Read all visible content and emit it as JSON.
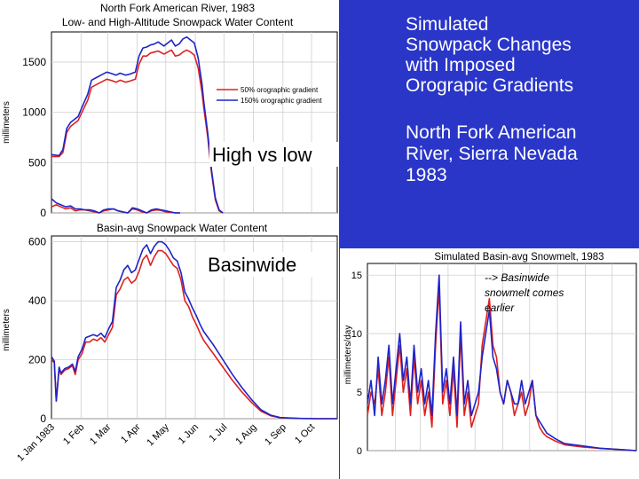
{
  "slide": {
    "title": "Simulated\nSnowpack Changes\nwith Imposed\nOrograpic Gradients",
    "subtitle": "North Fork American\nRiver, Sierra Nevada\n1983",
    "label_high_low": "High vs low",
    "label_basinwide": "Basinwide",
    "annotation": "--> Basinwide\nsnowmelt comes\nearlier",
    "colors": {
      "background": "#2a36c8",
      "red": "#e02020",
      "blue": "#1e24c8"
    }
  },
  "chart_data": [
    {
      "type": "line",
      "title": "North Fork American River, 1983",
      "subtitle": "Low- and High-Altitude Snowpack Water Content",
      "ylabel": "millimeters",
      "yticks": [
        0,
        500,
        1000,
        1500
      ],
      "ylim": [
        0,
        1800
      ],
      "xlim": [
        0,
        300
      ],
      "legend": [
        "50% orographic gradient",
        "150% orographic gradient"
      ],
      "series": [
        {
          "name": "50% orographic gradient (high altitude)",
          "color": "red",
          "x": [
            0,
            8,
            12,
            16,
            20,
            28,
            32,
            38,
            42,
            48,
            52,
            58,
            62,
            68,
            72,
            78,
            82,
            88,
            92,
            96,
            100,
            104,
            108,
            112,
            118,
            122,
            126,
            130,
            134,
            138,
            142,
            146,
            150,
            154,
            158,
            160,
            164,
            168,
            172,
            176,
            180
          ],
          "y": [
            560,
            560,
            600,
            800,
            860,
            920,
            1000,
            1120,
            1250,
            1280,
            1300,
            1330,
            1320,
            1300,
            1320,
            1300,
            1310,
            1330,
            1480,
            1560,
            1560,
            1590,
            1600,
            1610,
            1580,
            1600,
            1620,
            1560,
            1570,
            1600,
            1620,
            1600,
            1570,
            1440,
            1200,
            1040,
            760,
            400,
            130,
            20,
            0
          ]
        },
        {
          "name": "150% orographic gradient (high altitude)",
          "color": "blue",
          "x": [
            0,
            8,
            12,
            16,
            20,
            28,
            32,
            38,
            42,
            48,
            52,
            58,
            62,
            68,
            72,
            78,
            82,
            88,
            92,
            96,
            100,
            104,
            108,
            112,
            118,
            122,
            126,
            130,
            134,
            138,
            142,
            146,
            150,
            154,
            158,
            160,
            164,
            168,
            172,
            176,
            180
          ],
          "y": [
            580,
            570,
            630,
            840,
            900,
            960,
            1050,
            1180,
            1320,
            1350,
            1370,
            1400,
            1390,
            1370,
            1390,
            1370,
            1380,
            1400,
            1560,
            1640,
            1650,
            1670,
            1680,
            1700,
            1660,
            1690,
            1720,
            1660,
            1680,
            1730,
            1750,
            1720,
            1690,
            1540,
            1280,
            1100,
            800,
            430,
            150,
            30,
            0
          ]
        },
        {
          "name": "50% orographic gradient (low altitude)",
          "color": "red",
          "x": [
            0,
            5,
            10,
            15,
            20,
            25,
            30,
            35,
            40,
            45,
            50,
            55,
            60,
            65,
            70,
            75,
            80,
            85,
            90,
            95,
            100,
            105,
            110,
            115,
            120,
            125,
            130,
            135
          ],
          "y": [
            60,
            80,
            60,
            40,
            50,
            20,
            30,
            30,
            20,
            10,
            0,
            20,
            30,
            40,
            20,
            10,
            0,
            40,
            30,
            10,
            0,
            20,
            30,
            25,
            10,
            5,
            0,
            0
          ]
        },
        {
          "name": "150% orographic gradient (low altitude)",
          "color": "blue",
          "x": [
            0,
            5,
            10,
            15,
            20,
            25,
            30,
            35,
            40,
            45,
            50,
            55,
            60,
            65,
            70,
            75,
            80,
            85,
            90,
            95,
            100,
            105,
            110,
            115,
            120,
            125,
            130,
            135
          ],
          "y": [
            140,
            100,
            80,
            60,
            70,
            40,
            40,
            30,
            30,
            20,
            0,
            30,
            40,
            40,
            20,
            10,
            0,
            50,
            40,
            20,
            0,
            30,
            40,
            30,
            20,
            10,
            0,
            0
          ]
        }
      ]
    },
    {
      "type": "line",
      "title": "Basin-avg Snowpack Water Content",
      "ylabel": "millimeters",
      "yticks": [
        0,
        200,
        400,
        600
      ],
      "ylim": [
        0,
        620
      ],
      "xlim": [
        0,
        300
      ],
      "xticks": [
        {
          "label": "1 Jan 1983",
          "x": 0
        },
        {
          "label": "1 Feb",
          "x": 31
        },
        {
          "label": "1 Mar",
          "x": 59
        },
        {
          "label": "1 Apr",
          "x": 90
        },
        {
          "label": "1 May",
          "x": 120
        },
        {
          "label": "1 Jun",
          "x": 151
        },
        {
          "label": "1 Jul",
          "x": 181
        },
        {
          "label": "1 Aug",
          "x": 212
        },
        {
          "label": "1 Sep",
          "x": 243
        },
        {
          "label": "1 Oct",
          "x": 273
        }
      ],
      "series": [
        {
          "name": "50% orographic gradient",
          "color": "red",
          "x": [
            0,
            3,
            5,
            8,
            10,
            14,
            18,
            22,
            25,
            28,
            32,
            36,
            40,
            44,
            48,
            52,
            56,
            60,
            64,
            68,
            72,
            76,
            80,
            84,
            88,
            92,
            96,
            100,
            104,
            108,
            112,
            116,
            120,
            124,
            128,
            132,
            136,
            140,
            144,
            148,
            152,
            156,
            160,
            170,
            180,
            190,
            200,
            210,
            220,
            230,
            240,
            260,
            280,
            300
          ],
          "y": [
            200,
            190,
            60,
            170,
            150,
            165,
            170,
            180,
            150,
            200,
            220,
            260,
            260,
            270,
            265,
            275,
            260,
            285,
            310,
            420,
            440,
            470,
            480,
            460,
            470,
            500,
            540,
            555,
            520,
            550,
            570,
            570,
            560,
            540,
            520,
            510,
            470,
            400,
            380,
            345,
            320,
            290,
            265,
            220,
            175,
            130,
            90,
            55,
            25,
            10,
            3,
            1,
            0,
            0
          ]
        },
        {
          "name": "150% orographic gradient",
          "color": "blue",
          "x": [
            0,
            3,
            5,
            8,
            10,
            14,
            18,
            22,
            25,
            28,
            32,
            36,
            40,
            44,
            48,
            52,
            56,
            60,
            64,
            68,
            72,
            76,
            80,
            84,
            88,
            92,
            96,
            100,
            104,
            108,
            112,
            116,
            120,
            124,
            128,
            132,
            136,
            140,
            144,
            148,
            152,
            156,
            160,
            170,
            180,
            190,
            200,
            210,
            220,
            230,
            240,
            260,
            280,
            300
          ],
          "y": [
            210,
            195,
            60,
            175,
            155,
            170,
            175,
            185,
            160,
            210,
            235,
            275,
            280,
            285,
            280,
            290,
            275,
            305,
            330,
            445,
            470,
            505,
            520,
            495,
            505,
            540,
            575,
            590,
            560,
            585,
            600,
            600,
            590,
            570,
            545,
            535,
            495,
            430,
            405,
            375,
            350,
            320,
            295,
            250,
            200,
            150,
            105,
            65,
            30,
            12,
            4,
            1,
            0,
            0
          ]
        }
      ]
    },
    {
      "type": "line",
      "title": "Simulated Basin-avg Snowmelt, 1983",
      "ylabel": "millimeters/day",
      "yticks": [
        0,
        5,
        10,
        15
      ],
      "ylim": [
        0,
        16
      ],
      "xlim": [
        0,
        300
      ],
      "series": [
        {
          "name": "50% orographic gradient",
          "color": "red",
          "x": [
            0,
            4,
            8,
            12,
            16,
            20,
            24,
            28,
            32,
            36,
            40,
            44,
            48,
            52,
            56,
            60,
            64,
            68,
            72,
            76,
            80,
            84,
            88,
            92,
            96,
            100,
            104,
            108,
            112,
            116,
            120,
            124,
            128,
            132,
            136,
            140,
            144,
            148,
            152,
            156,
            160,
            164,
            168,
            172,
            176,
            180,
            184,
            188,
            192,
            196,
            200,
            210,
            220,
            240,
            260,
            280,
            300
          ],
          "y": [
            3,
            5,
            4,
            7,
            3,
            5,
            8,
            3,
            6,
            9,
            5,
            7,
            3,
            8,
            4,
            6,
            3,
            5,
            2,
            9,
            14,
            4,
            6,
            3,
            7,
            2,
            10,
            3,
            5,
            2,
            3,
            4,
            9,
            11,
            13,
            9,
            8,
            5,
            4,
            6,
            5,
            3,
            4,
            5,
            3,
            4,
            6,
            3,
            2,
            1.5,
            1.2,
            0.8,
            0.5,
            0.3,
            0.2,
            0.1,
            0
          ]
        },
        {
          "name": "150% orographic gradient",
          "color": "blue",
          "x": [
            0,
            4,
            8,
            12,
            16,
            20,
            24,
            28,
            32,
            36,
            40,
            44,
            48,
            52,
            56,
            60,
            64,
            68,
            72,
            76,
            80,
            84,
            88,
            92,
            96,
            100,
            104,
            108,
            112,
            116,
            120,
            124,
            128,
            132,
            136,
            140,
            144,
            148,
            152,
            156,
            160,
            164,
            168,
            172,
            176,
            180,
            184,
            188,
            192,
            196,
            200,
            210,
            220,
            240,
            260,
            280,
            300
          ],
          "y": [
            4,
            6,
            3,
            8,
            4,
            6,
            9,
            4,
            7,
            10,
            6,
            8,
            4,
            9,
            5,
            7,
            4,
            6,
            3,
            10,
            15,
            5,
            7,
            4,
            8,
            3,
            11,
            4,
            6,
            3,
            4,
            5,
            8,
            10,
            12,
            8,
            7,
            5,
            4,
            6,
            5,
            4,
            4,
            6,
            4,
            5,
            6,
            3,
            2.5,
            2,
            1.5,
            1,
            0.6,
            0.4,
            0.2,
            0.1,
            0
          ]
        }
      ]
    }
  ]
}
